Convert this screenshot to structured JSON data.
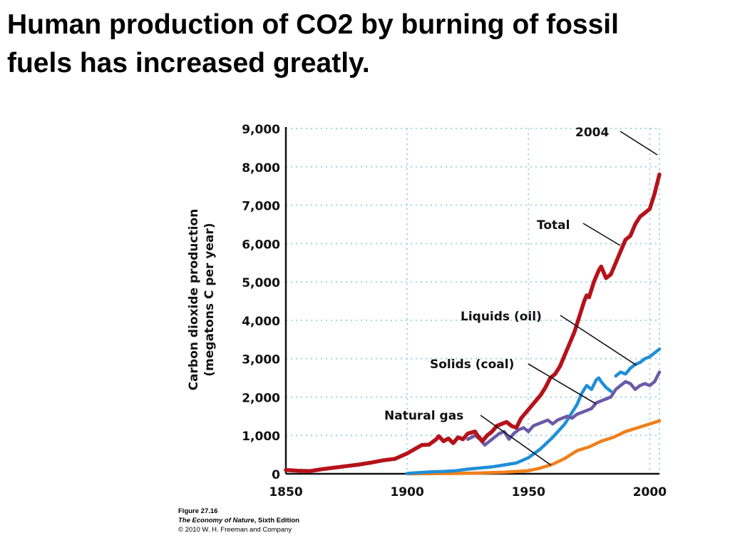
{
  "slide": {
    "title_line1": "Human production of CO2 by burning of fossil",
    "title_line2": "fuels has increased greatly."
  },
  "caption": {
    "figure": "Figure 27.16",
    "book": "The Economy of Nature",
    "edition": ", Sixth Edition",
    "copyright": "© 2010 W. H. Freeman and Company"
  },
  "chart_data": {
    "type": "line",
    "title": "",
    "xlabel": "",
    "ylabel": [
      "Carbon dioxide production",
      "(megatons C per year)"
    ],
    "xlim": [
      1850,
      2004
    ],
    "ylim": [
      0,
      9000
    ],
    "x_ticks": [
      1850,
      1900,
      1950,
      2000
    ],
    "x_tick_labels": [
      "1850",
      "1900",
      "1950",
      "2000"
    ],
    "y_ticks": [
      0,
      1000,
      2000,
      3000,
      4000,
      5000,
      6000,
      7000,
      8000,
      9000
    ],
    "y_tick_labels": [
      "0",
      "1,000",
      "2,000",
      "3,000",
      "4,000",
      "5,000",
      "6,000",
      "7,000",
      "8,000",
      "9,000"
    ],
    "grid": true,
    "colors": {
      "total": "#b5121b",
      "liquids": "#1f8fd6",
      "solids": "#6a5aa8",
      "gas": "#f07f1a",
      "grid": "#9fd4e4"
    },
    "series": [
      {
        "name": "Total",
        "key": "total",
        "x": [
          1850,
          1855,
          1860,
          1865,
          1870,
          1875,
          1880,
          1885,
          1890,
          1895,
          1900,
          1903,
          1906,
          1909,
          1912,
          1913,
          1915,
          1917,
          1919,
          1921,
          1923,
          1925,
          1928,
          1929,
          1931,
          1933,
          1935,
          1937,
          1939,
          1941,
          1943,
          1945,
          1947,
          1949,
          1951,
          1953,
          1955,
          1957,
          1959,
          1961,
          1963,
          1965,
          1967,
          1969,
          1971,
          1973,
          1974,
          1975,
          1977,
          1979,
          1980,
          1982,
          1984,
          1986,
          1988,
          1990,
          1992,
          1994,
          1996,
          1998,
          2000,
          2002,
          2004
        ],
        "y": [
          100,
          80,
          70,
          120,
          160,
          200,
          240,
          290,
          350,
          390,
          530,
          640,
          750,
          760,
          900,
          980,
          850,
          920,
          800,
          950,
          900,
          1050,
          1100,
          1000,
          850,
          1000,
          1100,
          1250,
          1300,
          1350,
          1250,
          1200,
          1450,
          1600,
          1750,
          1900,
          2050,
          2250,
          2500,
          2600,
          2800,
          3100,
          3400,
          3700,
          4100,
          4500,
          4650,
          4600,
          5000,
          5300,
          5400,
          5100,
          5200,
          5500,
          5800,
          6100,
          6200,
          6500,
          6700,
          6800,
          6900,
          7300,
          7800
        ]
      },
      {
        "name": "Liquids (oil)",
        "key": "liquids",
        "x": [
          1900,
          1905,
          1910,
          1915,
          1920,
          1925,
          1930,
          1935,
          1940,
          1945,
          1950,
          1955,
          1960,
          1965,
          1970,
          1972,
          1974,
          1976,
          1978,
          1979,
          1980,
          1982,
          1984
        ],
        "y": [
          10,
          30,
          50,
          60,
          80,
          120,
          150,
          180,
          230,
          280,
          420,
          650,
          950,
          1300,
          1800,
          2100,
          2300,
          2200,
          2450,
          2500,
          2400,
          2250,
          2150
        ]
      },
      {
        "name": "Liquids (oil)",
        "key": "liquids",
        "x": [
          1986,
          1988,
          1990,
          1992,
          1994,
          1996,
          1998,
          2000,
          2002,
          2004
        ],
        "y": [
          2550,
          2650,
          2600,
          2750,
          2850,
          2900,
          3000,
          3050,
          3150,
          3250
        ]
      },
      {
        "name": "Solids (coal)",
        "key": "solids",
        "x": [
          1925,
          1928,
          1930,
          1932,
          1934,
          1936,
          1938,
          1940,
          1942,
          1944,
          1946,
          1948,
          1950,
          1952,
          1954,
          1956,
          1958,
          1960,
          1962,
          1964,
          1966,
          1968,
          1970,
          1972,
          1974,
          1976,
          1978,
          1980,
          1982,
          1984,
          1986,
          1988,
          1990,
          1992,
          1994,
          1996,
          1998,
          2000,
          2002,
          2004
        ],
        "y": [
          900,
          1000,
          900,
          750,
          850,
          950,
          1050,
          1100,
          900,
          1050,
          1150,
          1200,
          1100,
          1250,
          1300,
          1350,
          1400,
          1300,
          1400,
          1450,
          1500,
          1450,
          1550,
          1600,
          1650,
          1700,
          1850,
          1900,
          1950,
          2000,
          2200,
          2300,
          2400,
          2350,
          2200,
          2300,
          2350,
          2300,
          2400,
          2650
        ]
      },
      {
        "name": "Natural gas",
        "key": "gas",
        "x": [
          1900,
          1910,
          1920,
          1930,
          1940,
          1945,
          1950,
          1955,
          1960,
          1965,
          1970,
          1975,
          1980,
          1985,
          1990,
          1995,
          2000,
          2004
        ],
        "y": [
          0,
          5,
          10,
          20,
          40,
          60,
          80,
          150,
          250,
          400,
          600,
          700,
          850,
          950,
          1100,
          1200,
          1300,
          1380
        ]
      }
    ],
    "annotations": [
      {
        "text": "2004"
      },
      {
        "text": "Total"
      },
      {
        "text": "Liquids (oil)"
      },
      {
        "text": "Solids (coal)"
      },
      {
        "text": "Natural gas"
      }
    ]
  }
}
